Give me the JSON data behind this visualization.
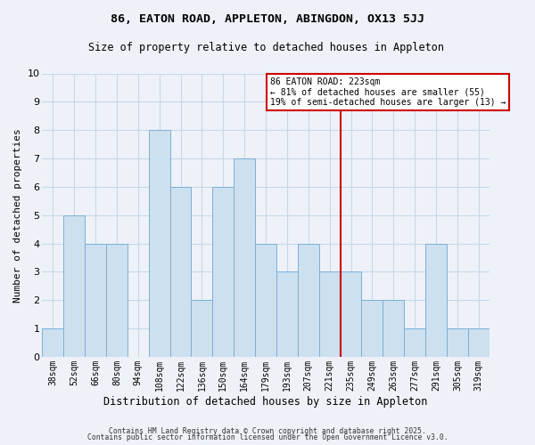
{
  "title": "86, EATON ROAD, APPLETON, ABINGDON, OX13 5JJ",
  "subtitle": "Size of property relative to detached houses in Appleton",
  "xlabel": "Distribution of detached houses by size in Appleton",
  "ylabel": "Number of detached properties",
  "bar_labels": [
    "38sqm",
    "52sqm",
    "66sqm",
    "80sqm",
    "94sqm",
    "108sqm",
    "122sqm",
    "136sqm",
    "150sqm",
    "164sqm",
    "179sqm",
    "193sqm",
    "207sqm",
    "221sqm",
    "235sqm",
    "249sqm",
    "263sqm",
    "277sqm",
    "291sqm",
    "305sqm",
    "319sqm"
  ],
  "bar_values": [
    1,
    5,
    4,
    4,
    0,
    8,
    6,
    2,
    6,
    7,
    4,
    3,
    4,
    3,
    3,
    2,
    2,
    1,
    4,
    1,
    1
  ],
  "bar_color": "#cde0f0",
  "bar_edge_color": "#7ab0d4",
  "highlight_index": 13,
  "highlight_line_color": "#cc0000",
  "ylim": [
    0,
    10
  ],
  "yticks": [
    0,
    1,
    2,
    3,
    4,
    5,
    6,
    7,
    8,
    9,
    10
  ],
  "annotation_title": "86 EATON ROAD: 223sqm",
  "annotation_line1": "← 81% of detached houses are smaller (55)",
  "annotation_line2": "19% of semi-detached houses are larger (13) →",
  "annotation_box_color": "#ffffff",
  "annotation_box_edge": "#cc0000",
  "footer1": "Contains HM Land Registry data © Crown copyright and database right 2025.",
  "footer2": "Contains public sector information licensed under the Open Government Licence v3.0.",
  "grid_color": "#c8d8e8",
  "background_color": "#eef2f8"
}
